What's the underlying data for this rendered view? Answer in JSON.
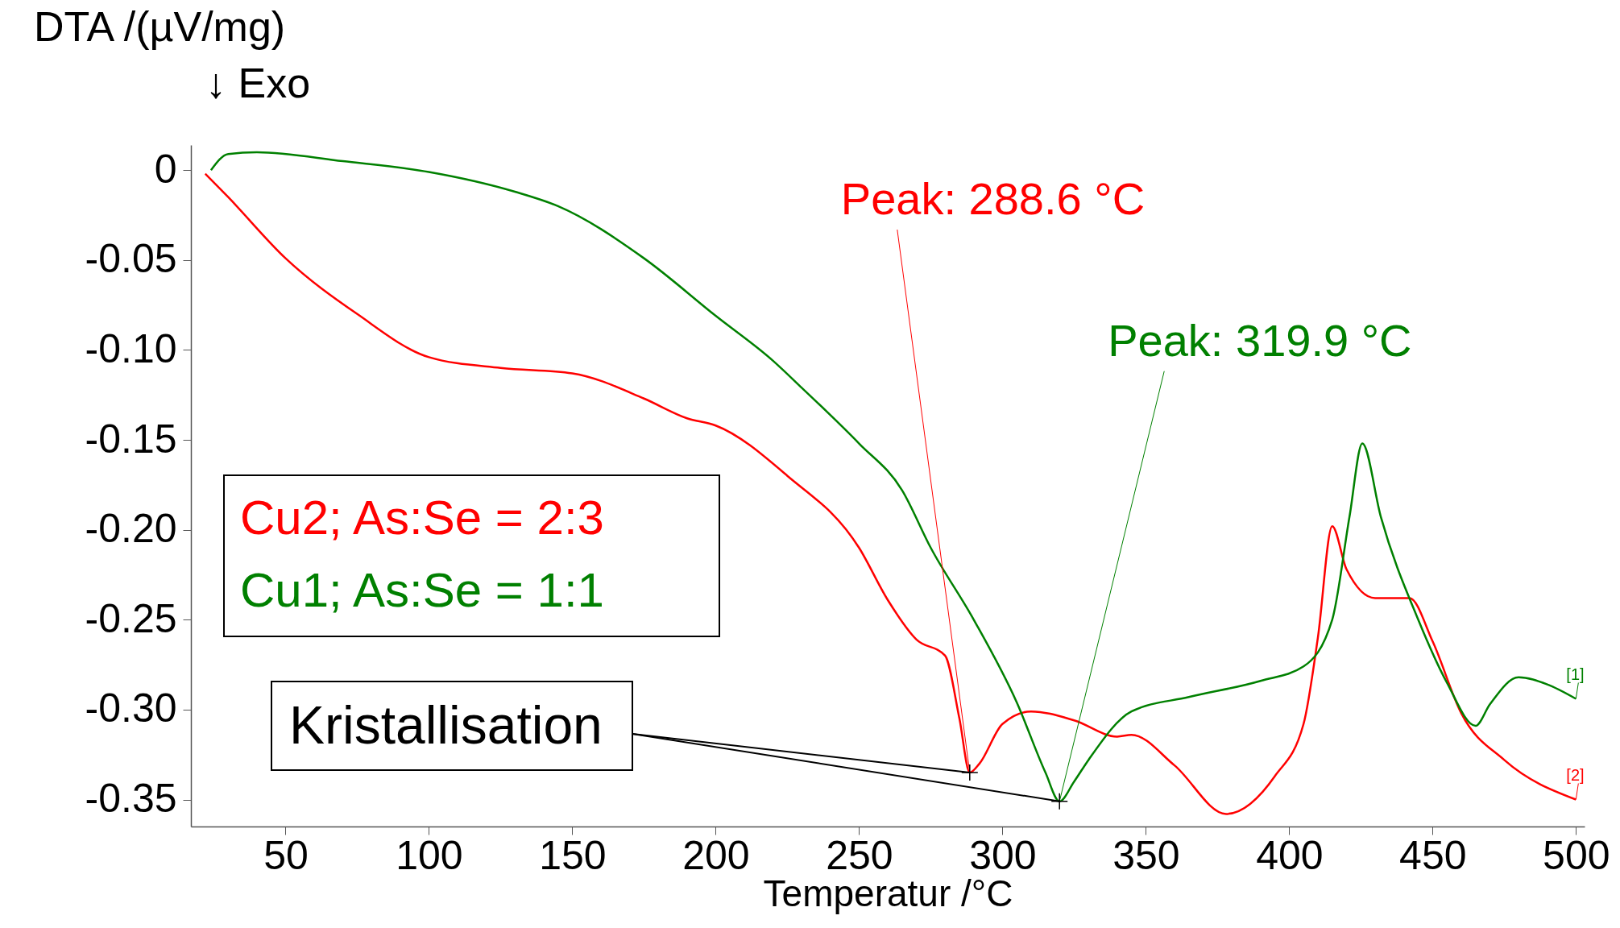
{
  "chart_data": {
    "type": "line",
    "ylabel": "DTA /(µV/mg)",
    "xlabel": "Temperatur /°C",
    "xlim": [
      17,
      503
    ],
    "ylim": [
      -0.365,
      0.014
    ],
    "xticks": [
      50,
      100,
      150,
      200,
      250,
      300,
      350,
      400,
      450,
      500
    ],
    "yticks": [
      {
        "value": 0,
        "label": "0"
      },
      {
        "value": -0.05,
        "label": "-0.05"
      },
      {
        "value": -0.1,
        "label": "-0.10"
      },
      {
        "value": -0.15,
        "label": "-0.15"
      },
      {
        "value": -0.2,
        "label": "-0.20"
      },
      {
        "value": -0.25,
        "label": "-0.25"
      },
      {
        "value": -0.3,
        "label": "-0.30"
      },
      {
        "value": -0.35,
        "label": "-0.35"
      }
    ],
    "grid": false,
    "legend": "left",
    "marker": "none",
    "line_style": "solid",
    "series": [
      {
        "name": "Cu2; As:Se = 2:3",
        "color": "#ff0000",
        "x": [
          22,
          30,
          50,
          75,
          100,
          125,
          150,
          175,
          190,
          200,
          225,
          250,
          260,
          270,
          280,
          285,
          288.6,
          292,
          300,
          310,
          325,
          340,
          345,
          360,
          378,
          395,
          405,
          410,
          415,
          420,
          430,
          442,
          450,
          460,
          475,
          500
        ],
        "values": [
          -0.002,
          -0.015,
          -0.049,
          -0.08,
          -0.104,
          -0.11,
          -0.113,
          -0.127,
          -0.138,
          -0.142,
          -0.17,
          -0.21,
          -0.239,
          -0.261,
          -0.27,
          -0.305,
          -0.335,
          -0.33,
          -0.308,
          -0.301,
          -0.306,
          -0.315,
          -0.314,
          -0.331,
          -0.358,
          -0.337,
          -0.308,
          -0.26,
          -0.198,
          -0.222,
          -0.238,
          -0.238,
          -0.262,
          -0.302,
          -0.328,
          -0.35
        ]
      },
      {
        "name": "Cu1; As:Se = 1:1",
        "color": "#008000",
        "x": [
          24,
          30,
          40,
          70,
          100,
          130,
          145,
          175,
          200,
          220,
          230,
          250,
          265,
          275,
          290,
          305,
          315,
          319.9,
          325,
          330,
          345,
          365,
          390,
          405,
          415,
          421,
          425.5,
          432,
          445,
          455,
          465,
          470,
          480,
          490,
          500
        ],
        "values": [
          0.0,
          0.009,
          0.01,
          0.005,
          -0.001,
          -0.012,
          -0.02,
          -0.049,
          -0.081,
          -0.106,
          -0.121,
          -0.152,
          -0.178,
          -0.21,
          -0.25,
          -0.296,
          -0.335,
          -0.351,
          -0.34,
          -0.328,
          -0.301,
          -0.293,
          -0.284,
          -0.276,
          -0.25,
          -0.193,
          -0.152,
          -0.193,
          -0.25,
          -0.285,
          -0.309,
          -0.297,
          -0.282,
          -0.286,
          -0.294
        ]
      }
    ],
    "annotations": [
      "↓ Exo",
      {
        "text": "Peak: 288.6 °C",
        "x": 288.6,
        "y": -0.335
      },
      {
        "text": "Peak: 319.9 °C",
        "x": 319.9,
        "y": -0.351
      },
      {
        "text": "Kristallisation",
        "x": 288.6,
        "y": -0.335
      },
      {
        "text": "[1]",
        "x": 500,
        "y": -0.294
      },
      {
        "text": "[2]",
        "x": 500,
        "y": -0.35
      }
    ]
  }
}
